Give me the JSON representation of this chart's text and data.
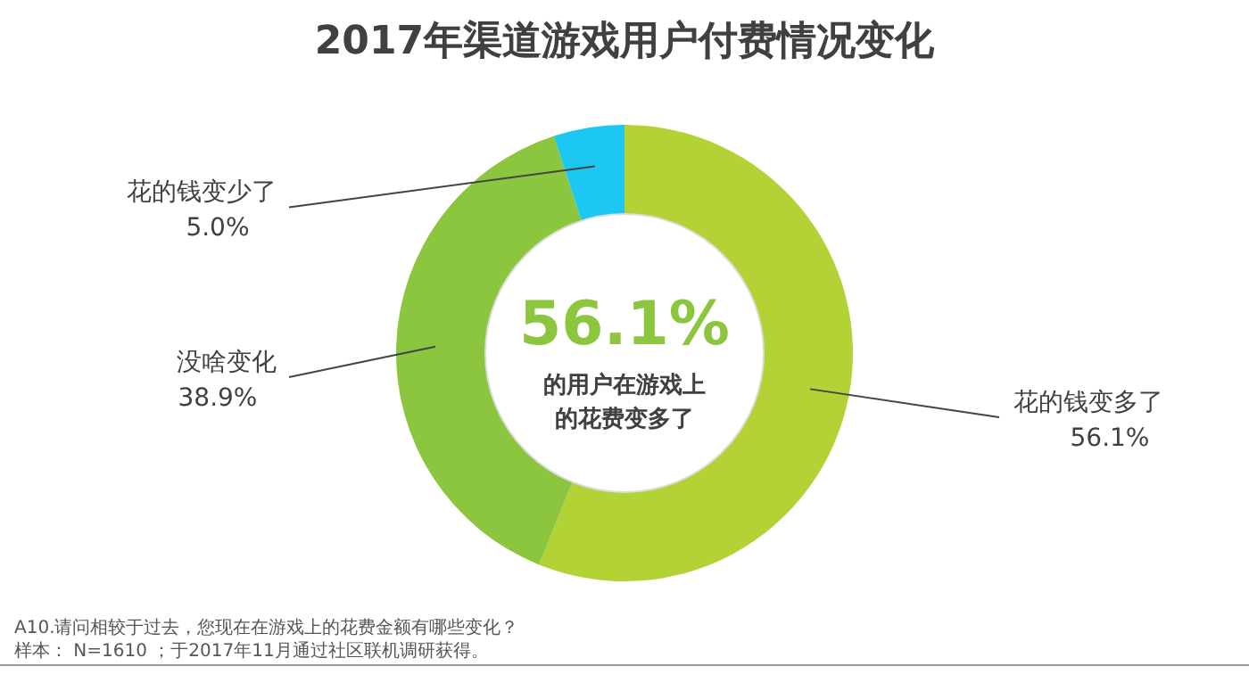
{
  "chart_data": {
    "type": "donut",
    "title": "2017年渠道游戏用户付费情况变化",
    "categories": [
      "花的钱变多了",
      "没啥变化",
      "花的钱变少了"
    ],
    "values": [
      56.1,
      38.9,
      5.0
    ],
    "colors": [
      "#b2d235",
      "#8cc63f",
      "#1cc7f2"
    ],
    "value_labels": [
      "56.1%",
      "38.9%",
      "5.0%"
    ],
    "annotations": [
      "56.1%",
      "的用户在游戏上",
      "的花费变多了",
      "A10.请问相较于过去，您现在在游戏上的花费金额有哪些变化？",
      "样本： N=1610 ；于2017年11月通过社区联机调研获得。"
    ]
  }
}
